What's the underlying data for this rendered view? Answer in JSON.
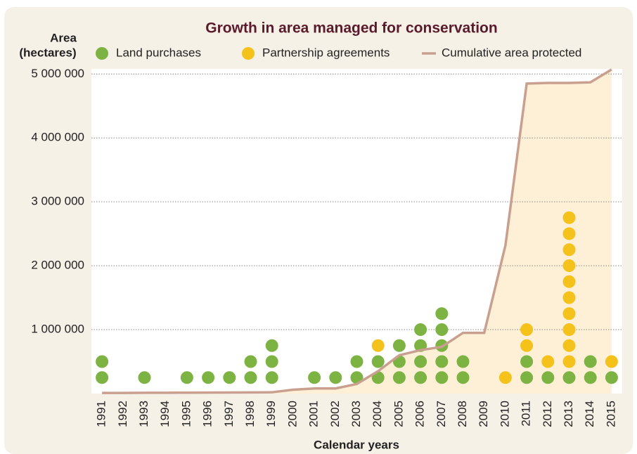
{
  "chart_data": {
    "type": "dot_line",
    "title": "Growth in area managed for conservation",
    "ylabel": [
      "Area",
      "(hectares)"
    ],
    "xlabel": "Calendar years",
    "categories": [
      "1991",
      "1992",
      "1993",
      "1994",
      "1995",
      "1996",
      "1997",
      "1998",
      "1999",
      "2000",
      "2001",
      "2002",
      "2003",
      "2004",
      "2005",
      "2006",
      "2007",
      "2008",
      "2009",
      "2010",
      "2011",
      "2012",
      "2013",
      "2014",
      "2015"
    ],
    "series": [
      {
        "name": "Land purchases",
        "kind": "dots",
        "color": "#7cb342",
        "values": [
          2,
          0,
          1,
          0,
          1,
          1,
          1,
          2,
          3,
          0,
          1,
          1,
          2,
          2,
          3,
          4,
          5,
          2,
          0,
          0,
          2,
          1,
          1,
          2,
          1
        ]
      },
      {
        "name": "Partnership agreements",
        "kind": "dots",
        "color": "#f5c21b",
        "values": [
          0,
          0,
          0,
          0,
          0,
          0,
          0,
          0,
          0,
          0,
          0,
          0,
          0,
          1,
          0,
          0,
          0,
          0,
          0,
          1,
          2,
          1,
          10,
          0,
          1
        ]
      },
      {
        "name": "Cumulative area protected",
        "kind": "line",
        "color": "#c9a08f",
        "values": [
          10000,
          10000,
          12000,
          12000,
          14000,
          15000,
          16000,
          18000,
          20000,
          60000,
          80000,
          80000,
          150000,
          350000,
          600000,
          680000,
          730000,
          950000,
          950000,
          2320000,
          4850000,
          4860000,
          4860000,
          4870000,
          5070000
        ]
      }
    ],
    "ylim": [
      0,
      5080000
    ],
    "yticks": [
      {
        "value": 1000000,
        "label": "1 000 000"
      },
      {
        "value": 2000000,
        "label": "2 000 000"
      },
      {
        "value": 3000000,
        "label": "3 000 000"
      },
      {
        "value": 4000000,
        "label": "4 000 000"
      },
      {
        "value": 5000000,
        "label": "5 000 000"
      }
    ],
    "grid": true
  }
}
